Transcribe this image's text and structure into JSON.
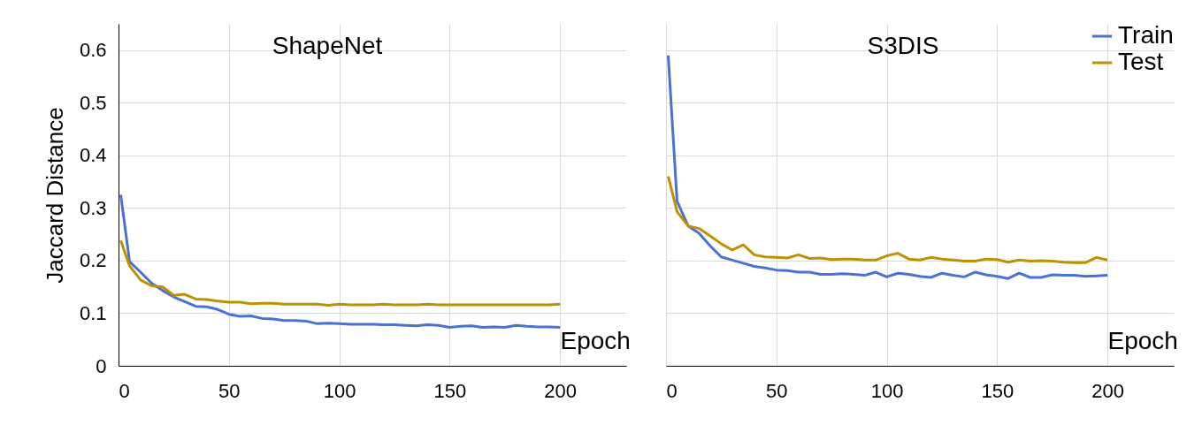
{
  "chart_data": [
    {
      "type": "line",
      "title": "ShapeNet",
      "xlabel": "Epoch",
      "ylabel": "Jaccard Distance",
      "x": [
        1,
        5,
        10,
        15,
        20,
        25,
        30,
        35,
        40,
        45,
        50,
        55,
        60,
        65,
        70,
        75,
        80,
        85,
        90,
        95,
        100,
        105,
        110,
        115,
        120,
        125,
        130,
        135,
        140,
        145,
        150,
        155,
        160,
        165,
        170,
        175,
        180,
        185,
        190,
        195,
        200
      ],
      "series": [
        {
          "color": "#4a72d0",
          "values": [
            0.325,
            0.198,
            0.178,
            0.157,
            0.143,
            0.131,
            0.122,
            0.113,
            0.112,
            0.107,
            0.098,
            0.094,
            0.095,
            0.09,
            0.089,
            0.086,
            0.086,
            0.085,
            0.08,
            0.081,
            0.08,
            0.079,
            0.079,
            0.079,
            0.078,
            0.078,
            0.077,
            0.076,
            0.078,
            0.077,
            0.073,
            0.075,
            0.076,
            0.073,
            0.074,
            0.073,
            0.077,
            0.075,
            0.074,
            0.074,
            0.073
          ]
        },
        {
          "color": "#bf9000",
          "values": [
            0.238,
            0.19,
            0.163,
            0.152,
            0.15,
            0.134,
            0.136,
            0.127,
            0.126,
            0.123,
            0.121,
            0.121,
            0.118,
            0.119,
            0.119,
            0.117,
            0.117,
            0.117,
            0.117,
            0.115,
            0.117,
            0.116,
            0.116,
            0.116,
            0.117,
            0.116,
            0.116,
            0.116,
            0.117,
            0.116,
            0.116,
            0.116,
            0.116,
            0.116,
            0.116,
            0.116,
            0.116,
            0.116,
            0.116,
            0.116,
            0.117
          ]
        }
      ],
      "xlim": [
        0,
        230
      ],
      "ylim": [
        0,
        0.65
      ],
      "xticks": [
        0,
        50,
        100,
        150,
        200
      ],
      "yticks": [
        0,
        0.1,
        0.2,
        0.3,
        0.4,
        0.5,
        0.6
      ],
      "grid": true,
      "legend": false
    },
    {
      "type": "line",
      "title": "S3DIS",
      "xlabel": "Epoch",
      "x": [
        1,
        5,
        10,
        15,
        20,
        25,
        30,
        35,
        40,
        45,
        50,
        55,
        60,
        65,
        70,
        75,
        80,
        85,
        90,
        95,
        100,
        105,
        110,
        115,
        120,
        125,
        130,
        135,
        140,
        145,
        150,
        155,
        160,
        165,
        170,
        175,
        180,
        185,
        190,
        195,
        200
      ],
      "series": [
        {
          "name": "Train",
          "color": "#4a72d0",
          "values": [
            0.59,
            0.313,
            0.266,
            0.252,
            0.228,
            0.207,
            0.201,
            0.195,
            0.189,
            0.186,
            0.182,
            0.181,
            0.178,
            0.178,
            0.174,
            0.174,
            0.175,
            0.174,
            0.172,
            0.178,
            0.169,
            0.176,
            0.174,
            0.17,
            0.168,
            0.176,
            0.172,
            0.169,
            0.178,
            0.173,
            0.17,
            0.166,
            0.176,
            0.168,
            0.168,
            0.173,
            0.172,
            0.172,
            0.17,
            0.171,
            0.172
          ]
        },
        {
          "name": "Test",
          "color": "#bf9000",
          "values": [
            0.36,
            0.293,
            0.266,
            0.261,
            0.247,
            0.232,
            0.22,
            0.23,
            0.211,
            0.207,
            0.206,
            0.205,
            0.211,
            0.204,
            0.205,
            0.202,
            0.203,
            0.203,
            0.201,
            0.201,
            0.209,
            0.214,
            0.203,
            0.201,
            0.206,
            0.203,
            0.201,
            0.199,
            0.199,
            0.203,
            0.202,
            0.197,
            0.201,
            0.199,
            0.2,
            0.199,
            0.197,
            0.196,
            0.196,
            0.206,
            0.201
          ]
        }
      ],
      "xlim": [
        0,
        230
      ],
      "ylim": [
        0,
        0.65
      ],
      "xticks": [
        0,
        50,
        100,
        150,
        200
      ],
      "yticks": [
        0,
        0.1,
        0.2,
        0.3,
        0.4,
        0.5,
        0.6
      ],
      "grid": true,
      "legend": "top right",
      "tick_labels": "x"
    }
  ]
}
